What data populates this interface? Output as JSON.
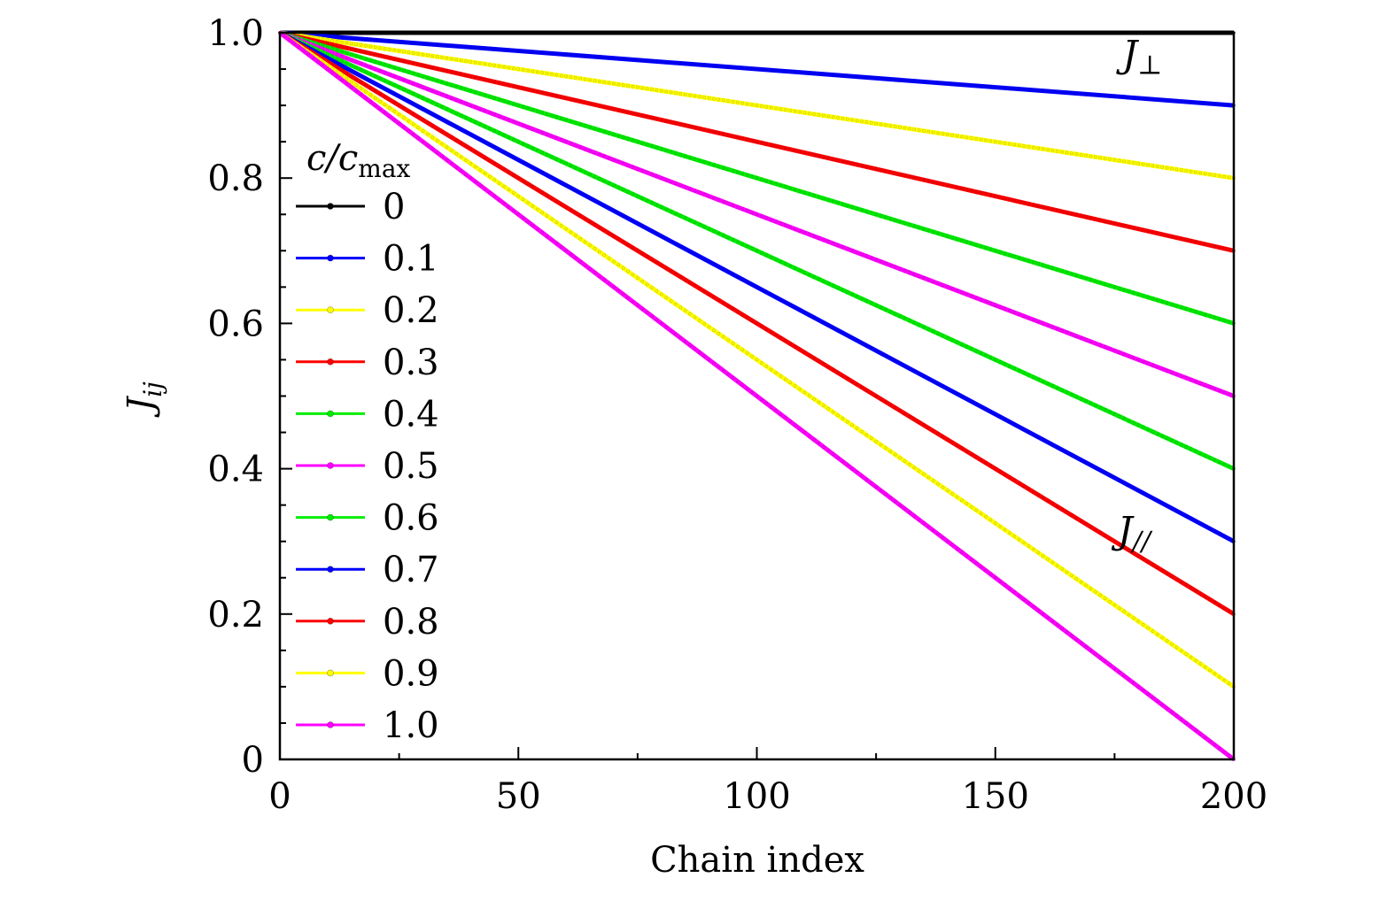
{
  "chart_data": {
    "type": "line",
    "title": "",
    "xlabel": "Chain index",
    "ylabel": "J",
    "ylabel_sub": "ij",
    "xlim": [
      0,
      200
    ],
    "ylim": [
      0,
      1.0
    ],
    "x_ticks": [
      {
        "value": 0,
        "label": "0"
      },
      {
        "value": 50,
        "label": "50"
      },
      {
        "value": 100,
        "label": "100"
      },
      {
        "value": 150,
        "label": "150"
      },
      {
        "value": 200,
        "label": "200"
      }
    ],
    "y_ticks": [
      {
        "value": 0,
        "label": "0"
      },
      {
        "value": 0.2,
        "label": "0.2"
      },
      {
        "value": 0.4,
        "label": "0.4"
      },
      {
        "value": 0.6,
        "label": "0.6"
      },
      {
        "value": 0.8,
        "label": "0.8"
      },
      {
        "value": 1.0,
        "label": "1.0"
      }
    ],
    "grid": false,
    "legend": {
      "placement": "left",
      "title_main": "c/c",
      "title_sub": "max"
    },
    "annotations": [
      {
        "main": "J",
        "sub": "⊥",
        "x": 180,
        "y": 0.97
      },
      {
        "main": "J",
        "sub": "//",
        "x": 179,
        "y": 0.315
      }
    ],
    "series": [
      {
        "name": "0",
        "color": "#000000",
        "x": [
          0,
          200
        ],
        "y": [
          1.0,
          1.0
        ]
      },
      {
        "name": "0.1",
        "color": "#0000ff",
        "x": [
          0,
          200
        ],
        "y": [
          1.0,
          0.9
        ]
      },
      {
        "name": "0.2",
        "color": "#ffff00",
        "x": [
          0,
          200
        ],
        "y": [
          1.0,
          0.8
        ]
      },
      {
        "name": "0.3",
        "color": "#ff0000",
        "x": [
          0,
          200
        ],
        "y": [
          1.0,
          0.7
        ]
      },
      {
        "name": "0.4",
        "color": "#00ee00",
        "x": [
          0,
          200
        ],
        "y": [
          1.0,
          0.6
        ]
      },
      {
        "name": "0.5",
        "color": "#ff00ff",
        "x": [
          0,
          200
        ],
        "y": [
          1.0,
          0.5
        ]
      },
      {
        "name": "0.6",
        "color": "#00ee00",
        "x": [
          0,
          200
        ],
        "y": [
          1.0,
          0.4
        ]
      },
      {
        "name": "0.7",
        "color": "#0000ff",
        "x": [
          0,
          200
        ],
        "y": [
          1.0,
          0.3
        ]
      },
      {
        "name": "0.8",
        "color": "#ff0000",
        "x": [
          0,
          200
        ],
        "y": [
          1.0,
          0.2
        ]
      },
      {
        "name": "0.9",
        "color": "#ffff00",
        "x": [
          0,
          200
        ],
        "y": [
          1.0,
          0.1
        ]
      },
      {
        "name": "1.0",
        "color": "#ff00ff",
        "x": [
          0,
          200
        ],
        "y": [
          1.0,
          0.0
        ]
      }
    ]
  }
}
